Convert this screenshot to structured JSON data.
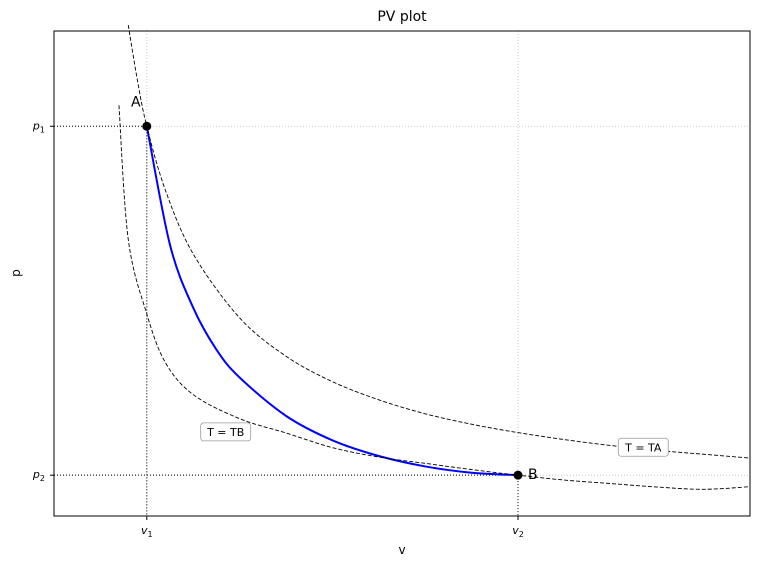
{
  "chart_data": {
    "type": "line",
    "title": "PV plot",
    "xlabel": "v",
    "ylabel": "p",
    "grid": true,
    "x_ticks": [
      {
        "value": 1.0,
        "base": "v",
        "sub": "1"
      },
      {
        "value": 5.0,
        "base": "v",
        "sub": "2"
      }
    ],
    "y_ticks": [
      {
        "value": 1.0,
        "base": "p",
        "sub": "1"
      },
      {
        "value": 0.0,
        "base": "p",
        "sub": "2"
      }
    ],
    "series": [
      {
        "style": "solid",
        "color": "#0000ff",
        "x": [
          1.0,
          1.25,
          1.5,
          1.75,
          2.0,
          2.5,
          3.0,
          3.5,
          4.0,
          4.5,
          5.0
        ],
        "y": [
          1.0,
          0.66,
          0.48,
          0.36,
          0.28,
          0.17,
          0.1,
          0.055,
          0.025,
          0.007,
          0.0
        ]
      },
      {
        "style": "dashed",
        "color": "#000000",
        "x": [
          0.8,
          0.9,
          1.0,
          1.2,
          1.5,
          2.0,
          2.5,
          3.0,
          3.5,
          4.0,
          4.5,
          5.0,
          5.5,
          6.0,
          6.5,
          7.0,
          7.5
        ],
        "y": [
          1.29,
          1.13,
          1.0,
          0.817,
          0.634,
          0.451,
          0.341,
          0.268,
          0.216,
          0.176,
          0.146,
          0.122,
          0.102,
          0.085,
          0.071,
          0.06,
          0.049
        ]
      },
      {
        "style": "dashed",
        "color": "#000000",
        "x": [
          0.7,
          0.8,
          1.0,
          1.2,
          1.5,
          2.0,
          2.5,
          3.0,
          3.5,
          4.0,
          4.5,
          5.0,
          5.5,
          6.0,
          6.5,
          7.0,
          7.5
        ],
        "y": [
          1.06,
          0.676,
          0.462,
          0.323,
          0.231,
          0.162,
          0.121,
          0.079,
          0.052,
          0.034,
          0.016,
          0.0,
          -0.014,
          -0.024,
          -0.034,
          -0.0405,
          -0.033
        ]
      }
    ],
    "points": [
      {
        "name": "A",
        "x": 1.0,
        "y": 1.0
      },
      {
        "name": "B",
        "x": 5.0,
        "y": 0.0
      }
    ],
    "annotations": [
      {
        "text": "T = TB",
        "x": 1.85,
        "y": 0.124
      },
      {
        "text": "T = TA",
        "x": 6.35,
        "y": 0.08
      }
    ],
    "xlim": [
      0.0,
      7.5
    ],
    "ylim": [
      -0.117,
      1.273
    ]
  }
}
